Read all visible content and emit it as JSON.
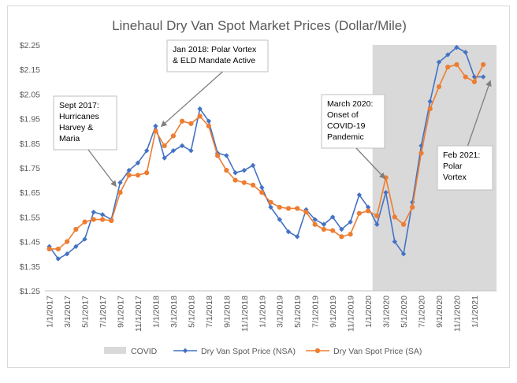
{
  "chart_data": {
    "type": "line",
    "title": "Linehaul Dry Van Spot Market Prices (Dollar/Mile)",
    "xlabel": "",
    "ylabel": "",
    "ylim": [
      1.25,
      2.25
    ],
    "yticks": [
      "$1.25",
      "$1.35",
      "$1.45",
      "$1.55",
      "$1.65",
      "$1.75",
      "$1.85",
      "$1.95",
      "$2.05",
      "$2.15",
      "$2.25"
    ],
    "ytick_values": [
      1.25,
      1.35,
      1.45,
      1.55,
      1.65,
      1.75,
      1.85,
      1.95,
      2.05,
      2.15,
      2.25
    ],
    "xtick_labels": [
      "1/1/2017",
      "3/1/2017",
      "5/1/2017",
      "7/1/2017",
      "9/1/2017",
      "11/1/2017",
      "1/1/2018",
      "3/1/2018",
      "5/1/2018",
      "7/1/2018",
      "9/1/2018",
      "11/1/2018",
      "1/1/2019",
      "3/1/2019",
      "5/1/2019",
      "7/1/2019",
      "9/1/2019",
      "11/1/2019",
      "1/1/2020",
      "3/1/2020",
      "5/1/2020",
      "7/1/2020",
      "9/1/2020",
      "11/1/2020",
      "1/1/2021"
    ],
    "xtick_month_index": [
      0,
      2,
      4,
      6,
      8,
      10,
      12,
      14,
      16,
      18,
      20,
      22,
      24,
      26,
      28,
      30,
      32,
      34,
      36,
      38,
      40,
      42,
      44,
      46,
      48
    ],
    "n_months": 51,
    "grid": false,
    "covid_band": {
      "name": "COVID",
      "start_month_index": 37,
      "end_month_index": 50,
      "color": "#d9d9d9"
    },
    "series": [
      {
        "name": "Dry Van Spot Price (NSA)",
        "color": "#4472c4",
        "marker": "diamond",
        "values": [
          1.43,
          1.38,
          1.4,
          1.43,
          1.46,
          1.57,
          1.56,
          1.54,
          1.69,
          1.74,
          1.77,
          1.82,
          1.92,
          1.79,
          1.82,
          1.84,
          1.82,
          1.99,
          1.94,
          1.81,
          1.8,
          1.73,
          1.74,
          1.76,
          1.67,
          1.59,
          1.54,
          1.49,
          1.47,
          1.58,
          1.54,
          1.52,
          1.55,
          1.5,
          1.53,
          1.64,
          1.59,
          1.52,
          1.65,
          1.45,
          1.4,
          1.61,
          1.84,
          2.02,
          2.18,
          2.21,
          2.24,
          2.22,
          2.12,
          2.12
        ]
      },
      {
        "name": "Dry Van Spot Price (SA)",
        "color": "#ed7d31",
        "marker": "circle",
        "values": [
          1.42,
          1.42,
          1.45,
          1.5,
          1.53,
          1.54,
          1.54,
          1.535,
          1.65,
          1.72,
          1.72,
          1.73,
          1.9,
          1.84,
          1.88,
          1.94,
          1.93,
          1.96,
          1.92,
          1.8,
          1.74,
          1.7,
          1.69,
          1.68,
          1.65,
          1.61,
          1.59,
          1.585,
          1.585,
          1.57,
          1.52,
          1.5,
          1.495,
          1.47,
          1.48,
          1.565,
          1.575,
          1.555,
          1.71,
          1.55,
          1.52,
          1.59,
          1.81,
          1.99,
          2.08,
          2.16,
          2.17,
          2.12,
          2.1,
          2.17
        ]
      }
    ],
    "annotations": [
      {
        "lines": [
          "Sept 2017:",
          "Hurricanes",
          "Harvey &",
          "Maria"
        ],
        "points_to_month": 8
      },
      {
        "lines": [
          "Jan 2018: Polar Vortex",
          "& ELD Mandate Active"
        ],
        "points_to_month": 12
      },
      {
        "lines": [
          "March 2020:",
          "Onset of",
          "COVID-19",
          "Pandemic"
        ],
        "points_to_month": 37
      },
      {
        "lines": [
          "Feb 2021:",
          "Polar",
          "Vortex"
        ],
        "points_to_month": 49
      }
    ],
    "legend": [
      "COVID",
      "Dry Van Spot Price (NSA)",
      "Dry Van Spot Price (SA)"
    ],
    "legend_position": "bottom"
  }
}
